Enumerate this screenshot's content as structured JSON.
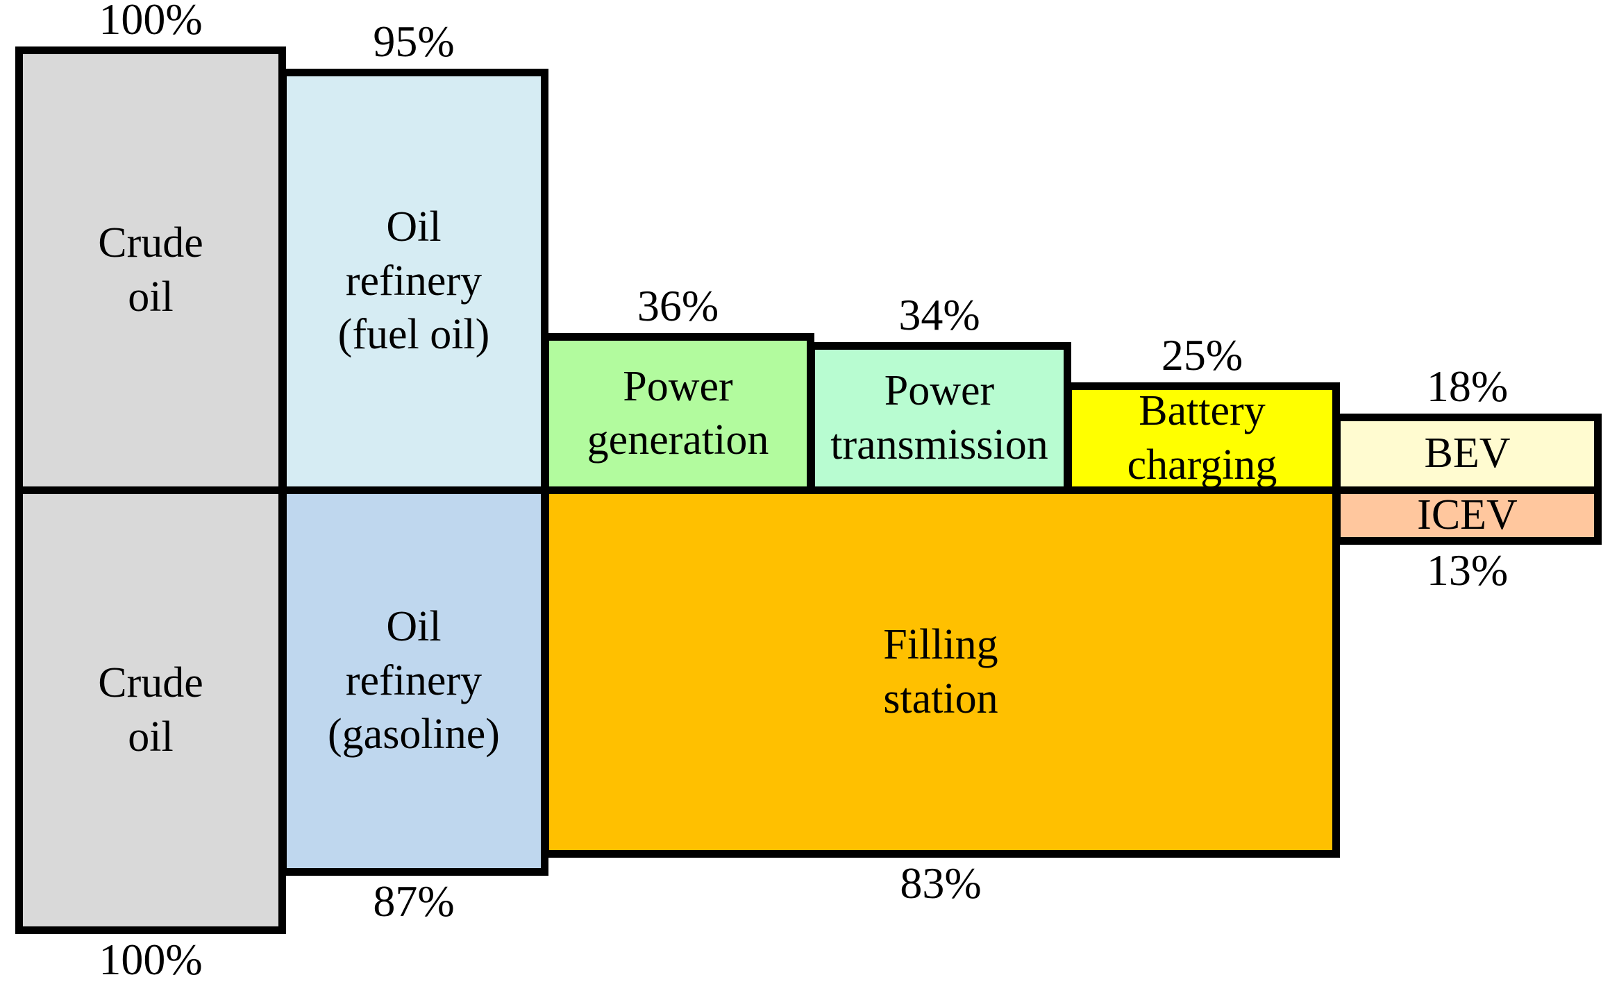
{
  "figure": {
    "background": "#FFFFFF",
    "border_color": "#000000",
    "unit": "%"
  },
  "chart_data": {
    "type": "bar",
    "variant": "efficiency-cascade",
    "orientation": "horizontal-cascade, two rows mirrored about a shared midline",
    "unit": "%",
    "value_range": [
      0,
      100
    ],
    "rows": [
      {
        "row": "top",
        "terminal_stage": "BEV",
        "stages": [
          {
            "id": "crude-oil-top",
            "lines": [
              "Crude",
              "oil"
            ],
            "value": 100,
            "value_label": "100%",
            "value_label_position": "above",
            "color": "#D9D9D9",
            "column": 0
          },
          {
            "id": "oil-refinery-fuel-oil",
            "lines": [
              "Oil",
              "refinery",
              "(fuel oil)"
            ],
            "value": 95,
            "value_label": "95%",
            "value_label_position": "above",
            "color": "#D6ECF3",
            "column": 1
          },
          {
            "id": "power-generation",
            "lines": [
              "Power",
              "generation"
            ],
            "value": 36,
            "value_label": "36%",
            "value_label_position": "above",
            "color": "#B2FB9E",
            "column": 2
          },
          {
            "id": "power-transmission",
            "lines": [
              "Power",
              "transmission"
            ],
            "value": 34,
            "value_label": "34%",
            "value_label_position": "above",
            "color": "#B8FCD1",
            "column": 3
          },
          {
            "id": "battery-charging",
            "lines": [
              "Battery",
              "charging"
            ],
            "value": 25,
            "value_label": "25%",
            "value_label_position": "above",
            "color": "#FFFF00",
            "column": 4
          },
          {
            "id": "bev",
            "lines": [
              "BEV"
            ],
            "value": 18,
            "value_label": "18%",
            "value_label_position": "above",
            "color": "#FFFBD0",
            "column": 5
          }
        ]
      },
      {
        "row": "bottom",
        "terminal_stage": "ICEV",
        "stages": [
          {
            "id": "crude-oil-bottom",
            "lines": [
              "Crude",
              "oil"
            ],
            "value": 100,
            "value_label": "100%",
            "value_label_position": "below",
            "color": "#D9D9D9",
            "column": 0
          },
          {
            "id": "oil-refinery-gasoline",
            "lines": [
              "Oil",
              "refinery",
              "(gasoline)"
            ],
            "value": 87,
            "value_label": "87%",
            "value_label_position": "below",
            "color": "#BFD7EE",
            "column": 1
          },
          {
            "id": "filling-station",
            "lines": [
              "Filling",
              "station"
            ],
            "value": 83,
            "value_label": "83%",
            "value_label_position": "below",
            "color": "#FFC000",
            "column": [
              2,
              4
            ]
          },
          {
            "id": "icev",
            "lines": [
              "ICEV"
            ],
            "value": 13,
            "value_label": "13%",
            "value_label_position": "below",
            "color": "#FFC79E",
            "column": 5
          }
        ]
      }
    ]
  }
}
